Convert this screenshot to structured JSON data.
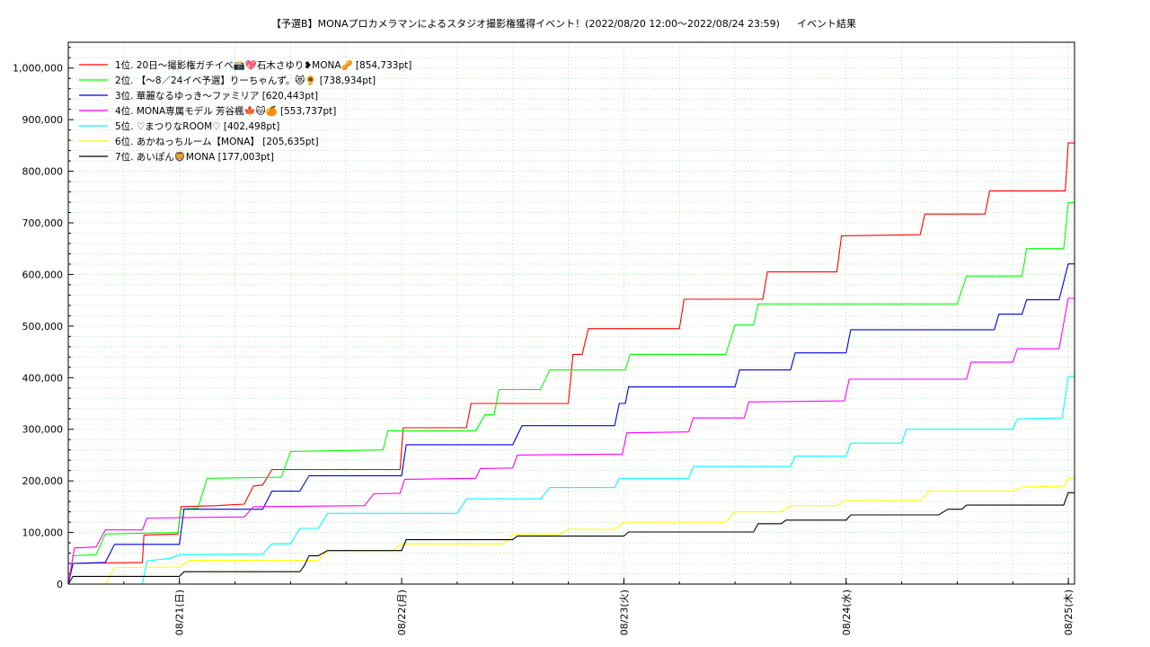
{
  "chart_data": {
    "type": "line",
    "title": "【予選B】MONAプロカメラマンによるスタジオ撮影権獲得イベント！(2022/08/20 12:00〜2022/08/24 23:59)",
    "subtitle": "イベント結果",
    "xlabel": "",
    "ylabel": "",
    "x_range": [
      "2022-08-20 12:00",
      "2022-08-25 00:40"
    ],
    "ylim": [
      0,
      1050000
    ],
    "y_ticks": [
      0,
      100000,
      200000,
      300000,
      400000,
      500000,
      600000,
      700000,
      800000,
      900000,
      1000000
    ],
    "y_tick_labels": [
      "0",
      "100,000",
      "200,000",
      "300,000",
      "400,000",
      "500,000",
      "600,000",
      "700,000",
      "800,000",
      "900,000",
      "1,000,000"
    ],
    "x_ticks": [
      "2022-08-21 00:00",
      "2022-08-22 00:00",
      "2022-08-23 00:00",
      "2022-08-24 00:00",
      "2022-08-25 00:00"
    ],
    "x_tick_labels": [
      "08/21(日)",
      "08/22(月)",
      "08/23(火)",
      "08/24(水)",
      "08/25(木)"
    ],
    "grid": true,
    "legend_position": "top-left",
    "series": [
      {
        "name": "1位. 20日〜撮影権ガチイベ📸💖石木さゆり❥MONA🥜 [854,733pt]",
        "color": "#ff0000",
        "points": [
          [
            "2022-08-20 12:00",
            0
          ],
          [
            "2022-08-20 12:30",
            40000
          ],
          [
            "2022-08-20 20:00",
            42000
          ],
          [
            "2022-08-20 20:10",
            95000
          ],
          [
            "2022-08-20 23:50",
            97000
          ],
          [
            "2022-08-21 00:10",
            150000
          ],
          [
            "2022-08-21 04:00",
            152000
          ],
          [
            "2022-08-21 07:00",
            155000
          ],
          [
            "2022-08-21 08:00",
            190000
          ],
          [
            "2022-08-21 09:00",
            192000
          ],
          [
            "2022-08-21 10:00",
            222000
          ],
          [
            "2022-08-21 23:50",
            222000
          ],
          [
            "2022-08-22 00:10",
            303000
          ],
          [
            "2022-08-22 07:00",
            303000
          ],
          [
            "2022-08-22 07:30",
            350000
          ],
          [
            "2022-08-22 18:00",
            350000
          ],
          [
            "2022-08-22 18:30",
            445000
          ],
          [
            "2022-08-22 19:30",
            445000
          ],
          [
            "2022-08-22 20:10",
            495000
          ],
          [
            "2022-08-23 06:00",
            495000
          ],
          [
            "2022-08-23 06:30",
            552000
          ],
          [
            "2022-08-23 15:00",
            552000
          ],
          [
            "2022-08-23 15:30",
            605000
          ],
          [
            "2022-08-23 23:00",
            605000
          ],
          [
            "2022-08-23 23:30",
            675000
          ],
          [
            "2022-08-24 08:00",
            677000
          ],
          [
            "2022-08-24 08:30",
            717000
          ],
          [
            "2022-08-24 15:00",
            717000
          ],
          [
            "2022-08-24 15:30",
            762000
          ],
          [
            "2022-08-24 23:40",
            762000
          ],
          [
            "2022-08-24 23:59",
            854733
          ],
          [
            "2022-08-25 00:40",
            854733
          ]
        ]
      },
      {
        "name": "2位. 【〜8／24イベ予選】りーちゃんず。😻🌻 [738,934pt]",
        "color": "#00ff00",
        "points": [
          [
            "2022-08-20 12:00",
            0
          ],
          [
            "2022-08-20 12:30",
            55000
          ],
          [
            "2022-08-20 15:00",
            57000
          ],
          [
            "2022-08-20 16:00",
            97000
          ],
          [
            "2022-08-20 23:50",
            100000
          ],
          [
            "2022-08-21 00:10",
            145000
          ],
          [
            "2022-08-21 02:00",
            147000
          ],
          [
            "2022-08-21 03:00",
            205000
          ],
          [
            "2022-08-21 11:00",
            207000
          ],
          [
            "2022-08-21 12:00",
            257000
          ],
          [
            "2022-08-21 22:00",
            260000
          ],
          [
            "2022-08-21 22:30",
            297000
          ],
          [
            "2022-08-22 08:00",
            297000
          ],
          [
            "2022-08-22 09:00",
            328000
          ],
          [
            "2022-08-22 10:00",
            328000
          ],
          [
            "2022-08-22 10:30",
            377000
          ],
          [
            "2022-08-22 15:00",
            377000
          ],
          [
            "2022-08-22 16:00",
            415000
          ],
          [
            "2022-08-23 00:10",
            415000
          ],
          [
            "2022-08-23 00:40",
            445000
          ],
          [
            "2022-08-23 11:00",
            445000
          ],
          [
            "2022-08-23 12:00",
            502000
          ],
          [
            "2022-08-23 14:00",
            502000
          ],
          [
            "2022-08-23 14:30",
            543000
          ],
          [
            "2022-08-24 12:00",
            543000
          ],
          [
            "2022-08-24 13:00",
            597000
          ],
          [
            "2022-08-24 19:00",
            597000
          ],
          [
            "2022-08-24 19:30",
            650000
          ],
          [
            "2022-08-24 23:30",
            650000
          ],
          [
            "2022-08-24 23:59",
            738934
          ],
          [
            "2022-08-25 00:40",
            738934
          ]
        ]
      },
      {
        "name": "3位. 華麗なるゆっき〜ファミリア [620,443pt]",
        "color": "#0000dd",
        "points": [
          [
            "2022-08-20 12:00",
            0
          ],
          [
            "2022-08-20 12:30",
            40000
          ],
          [
            "2022-08-20 16:00",
            42000
          ],
          [
            "2022-08-20 17:00",
            77000
          ],
          [
            "2022-08-21 00:00",
            77000
          ],
          [
            "2022-08-21 00:30",
            145000
          ],
          [
            "2022-08-21 09:00",
            145000
          ],
          [
            "2022-08-21 10:00",
            180000
          ],
          [
            "2022-08-21 13:00",
            180000
          ],
          [
            "2022-08-21 14:00",
            210000
          ],
          [
            "2022-08-22 00:00",
            210000
          ],
          [
            "2022-08-22 00:30",
            270000
          ],
          [
            "2022-08-22 12:00",
            270000
          ],
          [
            "2022-08-22 13:00",
            307000
          ],
          [
            "2022-08-22 23:00",
            307000
          ],
          [
            "2022-08-22 23:30",
            350000
          ],
          [
            "2022-08-23 00:10",
            350000
          ],
          [
            "2022-08-23 00:30",
            382000
          ],
          [
            "2022-08-23 12:00",
            382000
          ],
          [
            "2022-08-23 12:30",
            415000
          ],
          [
            "2022-08-23 18:00",
            415000
          ],
          [
            "2022-08-23 18:30",
            448000
          ],
          [
            "2022-08-24 00:00",
            448000
          ],
          [
            "2022-08-24 00:30",
            493000
          ],
          [
            "2022-08-24 16:00",
            493000
          ],
          [
            "2022-08-24 16:30",
            523000
          ],
          [
            "2022-08-24 19:00",
            523000
          ],
          [
            "2022-08-24 19:30",
            551000
          ],
          [
            "2022-08-24 23:00",
            551000
          ],
          [
            "2022-08-24 23:59",
            620443
          ],
          [
            "2022-08-25 00:40",
            620443
          ]
        ]
      },
      {
        "name": "4位. MONA専属モデル 芳谷楓🍁🐱🍊 [553,737pt]",
        "color": "#ff00ff",
        "points": [
          [
            "2022-08-20 12:00",
            0
          ],
          [
            "2022-08-20 12:40",
            70000
          ],
          [
            "2022-08-20 15:00",
            72000
          ],
          [
            "2022-08-20 16:00",
            105000
          ],
          [
            "2022-08-20 20:00",
            105000
          ],
          [
            "2022-08-20 20:30",
            128000
          ],
          [
            "2022-08-21 07:00",
            130000
          ],
          [
            "2022-08-21 08:00",
            150000
          ],
          [
            "2022-08-21 20:00",
            152000
          ],
          [
            "2022-08-21 21:00",
            175000
          ],
          [
            "2022-08-21 23:50",
            176000
          ],
          [
            "2022-08-22 00:20",
            203000
          ],
          [
            "2022-08-22 08:00",
            205000
          ],
          [
            "2022-08-22 08:30",
            224000
          ],
          [
            "2022-08-22 12:00",
            225000
          ],
          [
            "2022-08-22 12:30",
            250000
          ],
          [
            "2022-08-22 23:50",
            252000
          ],
          [
            "2022-08-23 00:20",
            293000
          ],
          [
            "2022-08-23 07:00",
            295000
          ],
          [
            "2022-08-23 07:30",
            322000
          ],
          [
            "2022-08-23 13:00",
            322000
          ],
          [
            "2022-08-23 13:30",
            353000
          ],
          [
            "2022-08-23 23:50",
            355000
          ],
          [
            "2022-08-24 00:20",
            397000
          ],
          [
            "2022-08-24 13:00",
            397000
          ],
          [
            "2022-08-24 13:30",
            430000
          ],
          [
            "2022-08-24 18:00",
            430000
          ],
          [
            "2022-08-24 18:30",
            456000
          ],
          [
            "2022-08-24 23:00",
            456000
          ],
          [
            "2022-08-24 23:59",
            553737
          ],
          [
            "2022-08-25 00:40",
            553737
          ]
        ]
      },
      {
        "name": "5位. ♡まつりなROOM♡ [402,498pt]",
        "color": "#00ffff",
        "points": [
          [
            "2022-08-20 12:00",
            0
          ],
          [
            "2022-08-20 20:00",
            0
          ],
          [
            "2022-08-20 20:30",
            45000
          ],
          [
            "2022-08-20 23:00",
            50000
          ],
          [
            "2022-08-21 00:00",
            57000
          ],
          [
            "2022-08-21 09:00",
            58000
          ],
          [
            "2022-08-21 10:00",
            78000
          ],
          [
            "2022-08-21 12:00",
            78000
          ],
          [
            "2022-08-21 13:00",
            108000
          ],
          [
            "2022-08-21 15:00",
            108000
          ],
          [
            "2022-08-21 16:00",
            137000
          ],
          [
            "2022-08-22 06:00",
            137000
          ],
          [
            "2022-08-22 07:00",
            165000
          ],
          [
            "2022-08-22 15:00",
            165000
          ],
          [
            "2022-08-22 16:00",
            187000
          ],
          [
            "2022-08-22 23:00",
            187000
          ],
          [
            "2022-08-22 23:30",
            205000
          ],
          [
            "2022-08-23 07:00",
            205000
          ],
          [
            "2022-08-23 07:30",
            228000
          ],
          [
            "2022-08-23 18:00",
            228000
          ],
          [
            "2022-08-23 18:30",
            248000
          ],
          [
            "2022-08-24 00:00",
            248000
          ],
          [
            "2022-08-24 00:30",
            273000
          ],
          [
            "2022-08-24 06:00",
            273000
          ],
          [
            "2022-08-24 06:30",
            300000
          ],
          [
            "2022-08-24 18:00",
            300000
          ],
          [
            "2022-08-24 18:30",
            320000
          ],
          [
            "2022-08-24 23:20",
            322000
          ],
          [
            "2022-08-24 23:59",
            402498
          ],
          [
            "2022-08-25 00:40",
            402498
          ]
        ]
      },
      {
        "name": "6位. あかねっちルーム【MONA】 [205,635pt]",
        "color": "#ffff00",
        "points": [
          [
            "2022-08-20 12:00",
            0
          ],
          [
            "2022-08-20 16:00",
            0
          ],
          [
            "2022-08-20 17:00",
            32000
          ],
          [
            "2022-08-21 00:00",
            33000
          ],
          [
            "2022-08-21 01:00",
            46000
          ],
          [
            "2022-08-21 15:00",
            46000
          ],
          [
            "2022-08-21 16:00",
            64000
          ],
          [
            "2022-08-21 23:00",
            64000
          ],
          [
            "2022-08-22 00:00",
            78000
          ],
          [
            "2022-08-22 11:00",
            78000
          ],
          [
            "2022-08-22 12:00",
            96000
          ],
          [
            "2022-08-22 17:00",
            96000
          ],
          [
            "2022-08-22 18:00",
            106000
          ],
          [
            "2022-08-22 23:00",
            106000
          ],
          [
            "2022-08-23 00:00",
            120000
          ],
          [
            "2022-08-23 11:00",
            120000
          ],
          [
            "2022-08-23 12:00",
            140000
          ],
          [
            "2022-08-23 17:00",
            140000
          ],
          [
            "2022-08-23 18:00",
            152000
          ],
          [
            "2022-08-23 23:00",
            152000
          ],
          [
            "2022-08-24 00:00",
            162000
          ],
          [
            "2022-08-24 08:00",
            162000
          ],
          [
            "2022-08-24 09:00",
            180000
          ],
          [
            "2022-08-24 18:00",
            180000
          ],
          [
            "2022-08-24 19:00",
            188000
          ],
          [
            "2022-08-24 23:30",
            190000
          ],
          [
            "2022-08-24 23:59",
            205635
          ],
          [
            "2022-08-25 00:40",
            205635
          ]
        ]
      },
      {
        "name": "7位. あいぽん🦁MONA [177,003pt]",
        "color": "#000000",
        "points": [
          [
            "2022-08-20 12:00",
            0
          ],
          [
            "2022-08-20 12:30",
            15000
          ],
          [
            "2022-08-21 00:00",
            15000
          ],
          [
            "2022-08-21 00:30",
            24000
          ],
          [
            "2022-08-21 13:00",
            24000
          ],
          [
            "2022-08-21 13:30",
            36000
          ],
          [
            "2022-08-21 14:00",
            55000
          ],
          [
            "2022-08-21 15:00",
            55000
          ],
          [
            "2022-08-21 16:00",
            65000
          ],
          [
            "2022-08-22 00:00",
            65000
          ],
          [
            "2022-08-22 00:30",
            86000
          ],
          [
            "2022-08-22 12:00",
            86000
          ],
          [
            "2022-08-22 12:30",
            93000
          ],
          [
            "2022-08-23 00:00",
            93000
          ],
          [
            "2022-08-23 00:30",
            101000
          ],
          [
            "2022-08-23 14:00",
            101000
          ],
          [
            "2022-08-23 14:30",
            117000
          ],
          [
            "2022-08-23 17:00",
            117000
          ],
          [
            "2022-08-23 17:30",
            124000
          ],
          [
            "2022-08-24 00:00",
            124000
          ],
          [
            "2022-08-24 00:30",
            134000
          ],
          [
            "2022-08-24 10:00",
            134000
          ],
          [
            "2022-08-24 11:00",
            145000
          ],
          [
            "2022-08-24 12:30",
            145000
          ],
          [
            "2022-08-24 13:00",
            153000
          ],
          [
            "2022-08-24 23:30",
            153000
          ],
          [
            "2022-08-24 23:59",
            177003
          ],
          [
            "2022-08-25 00:40",
            177003
          ]
        ]
      }
    ]
  }
}
